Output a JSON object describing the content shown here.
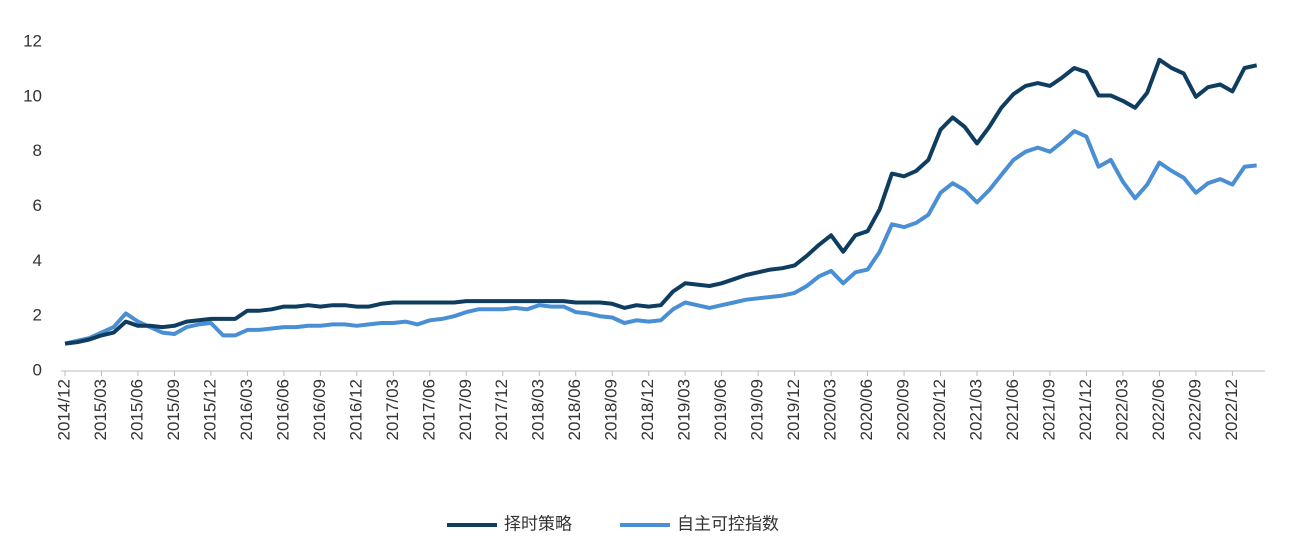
{
  "chart_data": {
    "type": "line",
    "categories": [
      "2014/12",
      null,
      null,
      "2015/03",
      null,
      null,
      "2015/06",
      null,
      null,
      "2015/09",
      null,
      null,
      "2015/12",
      null,
      null,
      "2016/03",
      null,
      null,
      "2016/06",
      null,
      null,
      "2016/09",
      null,
      null,
      "2016/12",
      null,
      null,
      "2017/03",
      null,
      null,
      "2017/06",
      null,
      null,
      "2017/09",
      null,
      null,
      "2017/12",
      null,
      null,
      "2018/03",
      null,
      null,
      "2018/06",
      null,
      null,
      "2018/09",
      null,
      null,
      "2018/12",
      null,
      null,
      "2019/03",
      null,
      null,
      "2019/06",
      null,
      null,
      "2019/09",
      null,
      null,
      "2019/12",
      null,
      null,
      "2020/03",
      null,
      null,
      "2020/06",
      null,
      null,
      "2020/09",
      null,
      null,
      "2020/12",
      null,
      null,
      "2021/03",
      null,
      null,
      "2021/06",
      null,
      null,
      "2021/09",
      null,
      null,
      "2021/12",
      null,
      null,
      "2022/03",
      null,
      null,
      "2022/06",
      null,
      null,
      "2022/09",
      null,
      null,
      "2022/12",
      null,
      null
    ],
    "series": [
      {
        "name": "择时策略",
        "color": "#0f3d5f",
        "values": [
          1.0,
          1.05,
          1.15,
          1.3,
          1.4,
          1.8,
          1.65,
          1.65,
          1.6,
          1.65,
          1.8,
          1.85,
          1.9,
          1.9,
          1.9,
          2.2,
          2.2,
          2.25,
          2.35,
          2.35,
          2.4,
          2.35,
          2.4,
          2.4,
          2.35,
          2.35,
          2.45,
          2.5,
          2.5,
          2.5,
          2.5,
          2.5,
          2.5,
          2.55,
          2.55,
          2.55,
          2.55,
          2.55,
          2.55,
          2.55,
          2.55,
          2.55,
          2.5,
          2.5,
          2.5,
          2.45,
          2.3,
          2.4,
          2.35,
          2.4,
          2.9,
          3.2,
          3.15,
          3.1,
          3.2,
          3.35,
          3.5,
          3.6,
          3.7,
          3.75,
          3.85,
          4.2,
          4.6,
          4.95,
          4.35,
          4.95,
          5.1,
          5.9,
          7.2,
          7.1,
          7.3,
          7.7,
          8.8,
          9.25,
          8.9,
          8.3,
          8.9,
          9.6,
          10.1,
          10.4,
          10.5,
          10.4,
          10.7,
          11.05,
          10.9,
          10.05,
          10.05,
          9.85,
          9.6,
          10.15,
          11.35,
          11.05,
          10.85,
          10.0,
          10.35,
          10.45,
          10.2,
          11.05,
          11.15
        ]
      },
      {
        "name": "自主可控指数",
        "color": "#4a8fd4",
        "values": [
          1.0,
          1.1,
          1.2,
          1.4,
          1.6,
          2.1,
          1.8,
          1.6,
          1.4,
          1.35,
          1.6,
          1.7,
          1.75,
          1.3,
          1.3,
          1.5,
          1.5,
          1.55,
          1.6,
          1.6,
          1.65,
          1.65,
          1.7,
          1.7,
          1.65,
          1.7,
          1.75,
          1.75,
          1.8,
          1.7,
          1.85,
          1.9,
          2.0,
          2.15,
          2.25,
          2.25,
          2.25,
          2.3,
          2.25,
          2.4,
          2.35,
          2.35,
          2.15,
          2.1,
          2.0,
          1.95,
          1.75,
          1.85,
          1.8,
          1.85,
          2.25,
          2.5,
          2.4,
          2.3,
          2.4,
          2.5,
          2.6,
          2.65,
          2.7,
          2.75,
          2.85,
          3.1,
          3.45,
          3.65,
          3.2,
          3.6,
          3.7,
          4.35,
          5.35,
          5.25,
          5.4,
          5.7,
          6.5,
          6.85,
          6.6,
          6.15,
          6.6,
          7.15,
          7.7,
          8.0,
          8.15,
          8.0,
          8.35,
          8.75,
          8.55,
          7.45,
          7.7,
          6.9,
          6.3,
          6.8,
          7.6,
          7.3,
          7.05,
          6.5,
          6.85,
          7.0,
          6.8,
          7.45,
          7.5
        ]
      }
    ],
    "ylim": [
      0,
      12
    ],
    "yticks": [
      0,
      2,
      4,
      6,
      8,
      10,
      12
    ],
    "grid": false,
    "legend": "bottom"
  }
}
